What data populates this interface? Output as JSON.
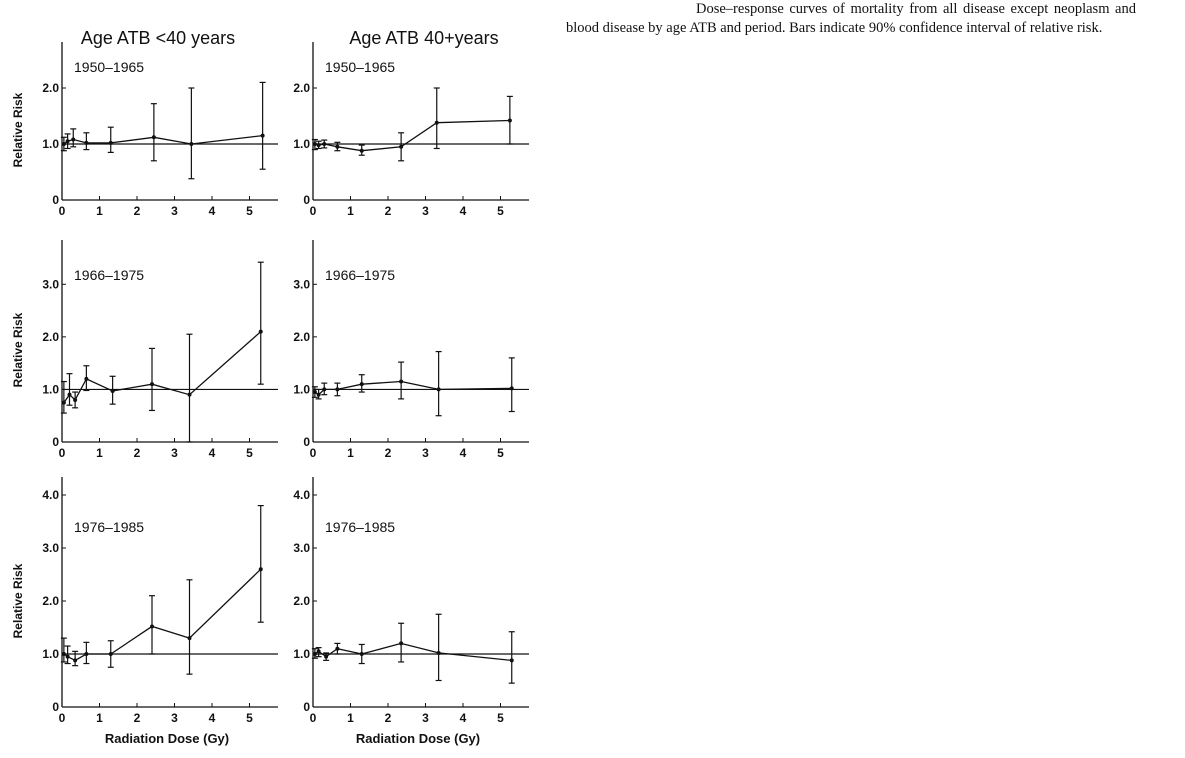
{
  "caption": "Dose–response curves of mortality from all disease except neoplasm and blood disease by age ATB and period. Bars indicate 90% confidence interval of relative risk.",
  "column_titles": [
    "Age ATB <40 years",
    "Age ATB 40+years"
  ],
  "row_periods": [
    "1950–1965",
    "1966–1975",
    "1976–1985"
  ],
  "y_axis_label": "Relative Risk",
  "x_axis_label": "Radiation Dose (Gy)",
  "chart_data": [
    {
      "type": "line",
      "row": 0,
      "col": 0,
      "period": "1950–1965",
      "ylim": [
        0,
        2.5
      ],
      "yticks": [
        "0",
        "1.0",
        "2.0"
      ],
      "ytick_values": [
        0,
        1,
        2
      ],
      "xticks": [
        "0",
        "1",
        "2",
        "3",
        "4",
        "5"
      ],
      "xlim": [
        0,
        5.6
      ],
      "reference_line": 1.0,
      "x": [
        0.05,
        0.15,
        0.3,
        0.65,
        1.3,
        2.45,
        3.45,
        5.35
      ],
      "y": [
        1.0,
        1.05,
        1.08,
        1.02,
        1.02,
        1.12,
        1.0,
        1.15
      ],
      "lower": [
        0.88,
        0.92,
        0.95,
        0.9,
        0.85,
        0.7,
        0.38,
        0.55
      ],
      "upper": [
        1.12,
        1.18,
        1.27,
        1.2,
        1.3,
        1.72,
        2.0,
        2.1
      ]
    },
    {
      "type": "line",
      "row": 0,
      "col": 1,
      "period": "1950–1965",
      "ylim": [
        0,
        2.5
      ],
      "yticks": [
        "0",
        "1.0",
        "2.0"
      ],
      "ytick_values": [
        0,
        1,
        2
      ],
      "xticks": [
        "0",
        "1",
        "2",
        "3",
        "4",
        "5"
      ],
      "xlim": [
        0,
        5.6
      ],
      "reference_line": 1.0,
      "x": [
        0.05,
        0.15,
        0.3,
        0.65,
        1.3,
        2.35,
        3.3,
        5.25
      ],
      "y": [
        1.0,
        0.98,
        1.0,
        0.95,
        0.88,
        0.95,
        1.38,
        1.42
      ],
      "lower": [
        0.9,
        0.92,
        0.93,
        0.88,
        0.8,
        0.7,
        0.92,
        1.0
      ],
      "upper": [
        1.08,
        1.05,
        1.07,
        1.03,
        0.98,
        1.2,
        2.0,
        1.85
      ]
    },
    {
      "type": "line",
      "row": 1,
      "col": 0,
      "period": "1966–1975",
      "ylim": [
        0,
        3.5
      ],
      "yticks": [
        "0",
        "1.0",
        "2.0",
        "3.0"
      ],
      "ytick_values": [
        0,
        1,
        2,
        3
      ],
      "xticks": [
        "0",
        "1",
        "2",
        "3",
        "4",
        "5"
      ],
      "xlim": [
        0,
        5.6
      ],
      "reference_line": 1.0,
      "x": [
        0.05,
        0.2,
        0.35,
        0.65,
        1.35,
        2.4,
        3.4,
        5.3
      ],
      "y": [
        0.75,
        0.9,
        0.8,
        1.2,
        0.97,
        1.1,
        0.9,
        2.1
      ],
      "lower": [
        0.55,
        0.7,
        0.65,
        0.98,
        0.72,
        0.6,
        0.0,
        1.1
      ],
      "upper": [
        1.15,
        1.3,
        0.95,
        1.45,
        1.25,
        1.78,
        2.05,
        3.42
      ]
    },
    {
      "type": "line",
      "row": 1,
      "col": 1,
      "period": "1966–1975",
      "ylim": [
        0,
        3.5
      ],
      "yticks": [
        "0",
        "1.0",
        "2.0",
        "3.0"
      ],
      "ytick_values": [
        0,
        1,
        2,
        3
      ],
      "xticks": [
        "0",
        "1",
        "2",
        "3",
        "4",
        "5"
      ],
      "xlim": [
        0,
        5.6
      ],
      "reference_line": 1.0,
      "x": [
        0.05,
        0.15,
        0.3,
        0.65,
        1.3,
        2.35,
        3.35,
        5.3
      ],
      "y": [
        0.95,
        0.9,
        1.0,
        1.0,
        1.1,
        1.15,
        1.0,
        1.02
      ],
      "lower": [
        0.85,
        0.82,
        0.9,
        0.88,
        0.95,
        0.82,
        0.5,
        0.58
      ],
      "upper": [
        1.05,
        1.0,
        1.12,
        1.12,
        1.28,
        1.52,
        1.72,
        1.6
      ]
    },
    {
      "type": "line",
      "row": 2,
      "col": 0,
      "period": "1976–1985",
      "ylim": [
        0,
        4.0
      ],
      "yticks": [
        "0",
        "1.0",
        "2.0",
        "3.0",
        "4.0"
      ],
      "ytick_values": [
        0,
        1,
        2,
        3,
        4
      ],
      "xticks": [
        "0",
        "1",
        "2",
        "3",
        "4",
        "5"
      ],
      "xlim": [
        0,
        5.6
      ],
      "reference_line": 1.0,
      "x": [
        0.05,
        0.15,
        0.35,
        0.65,
        1.3,
        2.4,
        3.4,
        5.3
      ],
      "y": [
        1.0,
        0.95,
        0.88,
        1.0,
        1.0,
        1.52,
        1.3,
        2.6
      ],
      "lower": [
        0.85,
        0.82,
        0.78,
        0.82,
        0.75,
        1.0,
        0.62,
        1.6
      ],
      "upper": [
        1.3,
        1.15,
        1.05,
        1.22,
        1.25,
        2.1,
        2.4,
        3.8
      ]
    },
    {
      "type": "line",
      "row": 2,
      "col": 1,
      "period": "1976–1985",
      "ylim": [
        0,
        4.0
      ],
      "yticks": [
        "0",
        "1.0",
        "2.0",
        "3.0",
        "4.0"
      ],
      "ytick_values": [
        0,
        1,
        2,
        3,
        4
      ],
      "xticks": [
        "0",
        "1",
        "2",
        "3",
        "4",
        "5"
      ],
      "xlim": [
        0,
        5.6
      ],
      "reference_line": 1.0,
      "x": [
        0.05,
        0.15,
        0.35,
        0.65,
        1.3,
        2.35,
        3.35,
        5.3
      ],
      "y": [
        1.0,
        1.05,
        0.95,
        1.1,
        1.0,
        1.2,
        1.02,
        0.88
      ],
      "lower": [
        0.92,
        0.95,
        0.88,
        1.0,
        0.82,
        0.85,
        0.5,
        0.45
      ],
      "upper": [
        1.1,
        1.12,
        1.02,
        1.2,
        1.18,
        1.58,
        1.75,
        1.42
      ]
    }
  ]
}
